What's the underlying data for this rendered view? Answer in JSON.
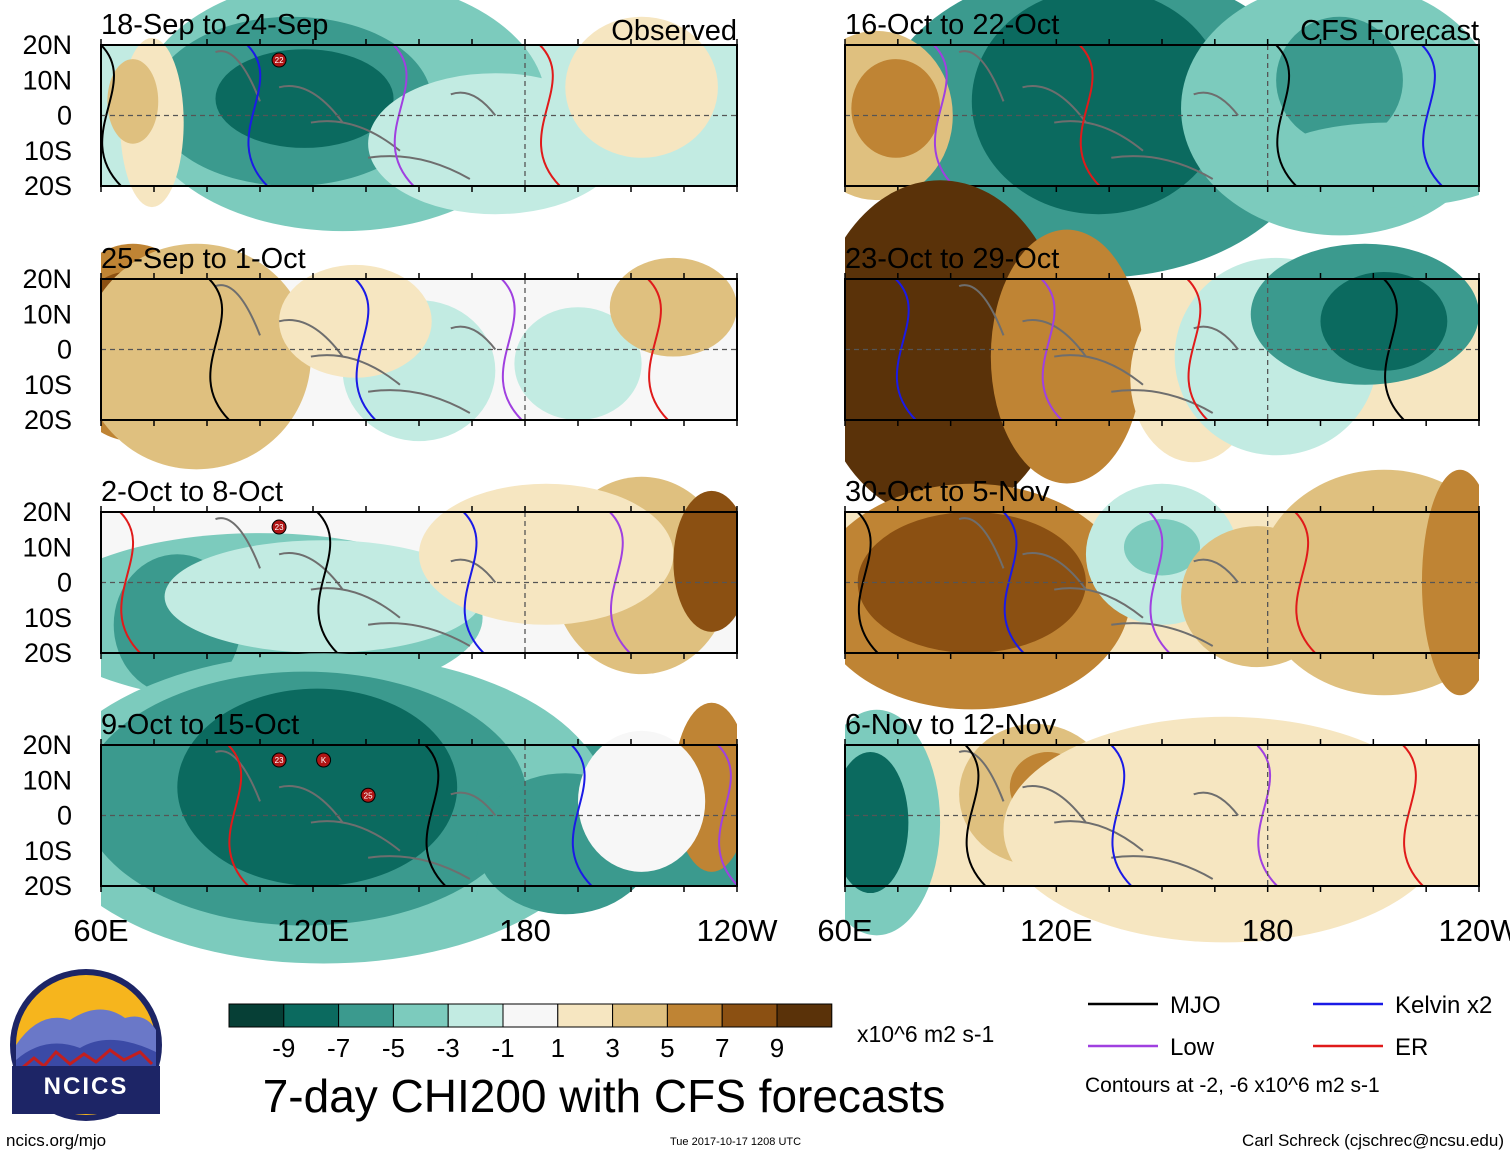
{
  "figure": {
    "main_title": "7-day CHI200 with CFS forecasts",
    "observed_label": "Observed",
    "forecast_label": "CFS Forecast",
    "units": "x10^6 m2 s-1",
    "contour_note": "Contours at -2, -6 x10^6 m2 s-1",
    "credit_left": "ncics.org/mjo",
    "timestamp": "Tue 2017-10-17 1208 UTC",
    "credit_right": "Carl Schreck (cjschrec@ncsu.edu)",
    "logo_text": "NCICS"
  },
  "chart_data": {
    "type": "heatmap",
    "variable": "CHI200 (200-hPa velocity potential anomaly)",
    "x_axis": {
      "range": [
        "60E",
        "120W"
      ],
      "tick_labels": [
        "60E",
        "120E",
        "180",
        "120W"
      ]
    },
    "y_axis": {
      "range": [
        "20S",
        "20N"
      ],
      "tick_labels": [
        "20N",
        "10N",
        "0",
        "10S",
        "20S"
      ]
    },
    "colorbar": {
      "levels": [
        -9,
        -7,
        -5,
        -3,
        -1,
        1,
        3,
        5,
        7,
        9
      ],
      "colors": [
        "#063f36",
        "#0b6a5f",
        "#3b9a8e",
        "#7ccbbd",
        "#c2ebe2",
        "#f7f7f7",
        "#f6e6c1",
        "#dfc07f",
        "#bf8434",
        "#8b5012",
        "#5a3209"
      ]
    },
    "legend": [
      {
        "name": "MJO",
        "color": "#000000"
      },
      {
        "name": "Kelvin x2",
        "color": "#1a1ae6"
      },
      {
        "name": "Low",
        "color": "#a040e0"
      },
      {
        "name": "ER",
        "color": "#e01a1a"
      }
    ],
    "panels": [
      {
        "title": "18-Sep to 24-Sep",
        "kind": "observed",
        "storm_markers": [
          "22"
        ]
      },
      {
        "title": "25-Sep to 1-Oct",
        "kind": "observed",
        "storm_markers": []
      },
      {
        "title": "2-Oct to 8-Oct",
        "kind": "observed",
        "storm_markers": [
          "23"
        ]
      },
      {
        "title": "9-Oct to 15-Oct",
        "kind": "observed",
        "storm_markers": [
          "23",
          "K",
          "25"
        ]
      },
      {
        "title": "16-Oct to 22-Oct",
        "kind": "forecast",
        "storm_markers": []
      },
      {
        "title": "23-Oct to 29-Oct",
        "kind": "forecast",
        "storm_markers": []
      },
      {
        "title": "30-Oct to 5-Nov",
        "kind": "forecast",
        "storm_markers": []
      },
      {
        "title": "6-Nov to 12-Nov",
        "kind": "forecast",
        "storm_markers": []
      }
    ]
  }
}
